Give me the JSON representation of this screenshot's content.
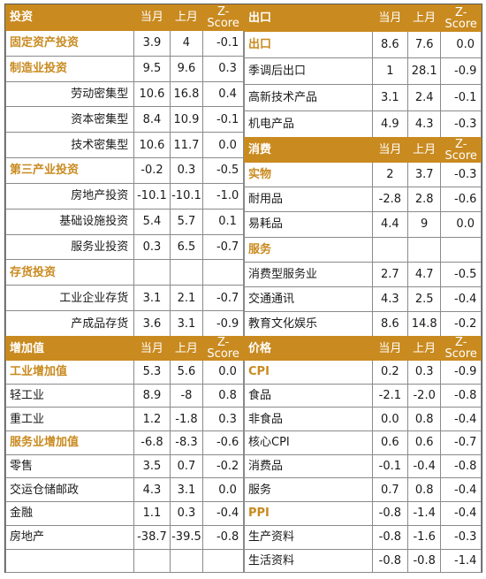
{
  "columns": {
    "current": "当月",
    "previous": "上月",
    "zscore": "Z-Score"
  },
  "investment": {
    "title": "投资",
    "rows": [
      {
        "name": "固定资产投资",
        "cur": "3.9",
        "prev": "4",
        "z": "-0.1",
        "type": "cat"
      },
      {
        "name": "制造业投资",
        "cur": "9.5",
        "prev": "9.6",
        "z": "0.3",
        "type": "cat"
      },
      {
        "name": "劳动密集型",
        "cur": "10.6",
        "prev": "16.8",
        "z": "0.4",
        "type": "ind"
      },
      {
        "name": "资本密集型",
        "cur": "8.4",
        "prev": "10.9",
        "z": "-0.1",
        "type": "ind"
      },
      {
        "name": "技术密集型",
        "cur": "10.6",
        "prev": "11.7",
        "z": "0.0",
        "type": "ind"
      },
      {
        "name": "第三产业投资",
        "cur": "-0.2",
        "prev": "0.3",
        "z": "-0.5",
        "type": "cat"
      },
      {
        "name": "房地产投资",
        "cur": "-10.1",
        "prev": "-10.1",
        "z": "-1.0",
        "type": "ind"
      },
      {
        "name": "基础设施投资",
        "cur": "5.4",
        "prev": "5.7",
        "z": "0.1",
        "type": "ind"
      },
      {
        "name": "服务业投资",
        "cur": "0.3",
        "prev": "6.5",
        "z": "-0.7",
        "type": "ind"
      },
      {
        "name": "存货投资",
        "cur": "",
        "prev": "",
        "z": "",
        "type": "cat"
      },
      {
        "name": "工业企业存货",
        "cur": "3.1",
        "prev": "2.1",
        "z": "-0.7",
        "type": "ind"
      },
      {
        "name": "产成品存货",
        "cur": "3.6",
        "prev": "3.1",
        "z": "-0.9",
        "type": "ind"
      }
    ]
  },
  "exports": {
    "title": "出口",
    "rows": [
      {
        "name": "出口",
        "cur": "8.6",
        "prev": "7.6",
        "z": "0.0",
        "type": "cat"
      },
      {
        "name": "季调后出口",
        "cur": "1",
        "prev": "28.1",
        "z": "-0.9",
        "type": "plain"
      },
      {
        "name": "高新技术产品",
        "cur": "3.1",
        "prev": "2.4",
        "z": "-0.1",
        "type": "plain"
      },
      {
        "name": "机电产品",
        "cur": "4.9",
        "prev": "4.3",
        "z": "-0.3",
        "type": "plain"
      }
    ]
  },
  "consumption": {
    "title": "消费",
    "rows": [
      {
        "name": "实物",
        "cur": "2",
        "prev": "3.7",
        "z": "-0.3",
        "type": "cat"
      },
      {
        "name": "耐用品",
        "cur": "-2.8",
        "prev": "2.8",
        "z": "-0.6",
        "type": "plain"
      },
      {
        "name": "易耗品",
        "cur": "4.4",
        "prev": "9",
        "z": "0.0",
        "type": "plain"
      },
      {
        "name": "服务",
        "cur": "",
        "prev": "",
        "z": "",
        "type": "cat"
      },
      {
        "name": "消费型服务业",
        "cur": "2.7",
        "prev": "4.7",
        "z": "-0.5",
        "type": "plain"
      },
      {
        "name": "交通通讯",
        "cur": "4.3",
        "prev": "2.5",
        "z": "-0.4",
        "type": "plain"
      },
      {
        "name": "教育文化娱乐",
        "cur": "8.6",
        "prev": "14.8",
        "z": "-0.2",
        "type": "plain"
      }
    ]
  },
  "value_added": {
    "title": "增加值",
    "rows": [
      {
        "name": "工业增加值",
        "cur": "5.3",
        "prev": "5.6",
        "z": "0.0",
        "type": "cat"
      },
      {
        "name": "轻工业",
        "cur": "8.9",
        "prev": "-8",
        "z": "0.8",
        "type": "plain"
      },
      {
        "name": "重工业",
        "cur": "1.2",
        "prev": "-1.8",
        "z": "0.3",
        "type": "plain"
      },
      {
        "name": "服务业增加值",
        "cur": "-6.8",
        "prev": "-8.3",
        "z": "-0.6",
        "type": "cat"
      },
      {
        "name": "零售",
        "cur": "3.5",
        "prev": "0.7",
        "z": "-0.2",
        "type": "plain"
      },
      {
        "name": "交运仓储邮政",
        "cur": "4.3",
        "prev": "3.1",
        "z": "0.0",
        "type": "plain"
      },
      {
        "name": "金融",
        "cur": "1.1",
        "prev": "0.3",
        "z": "-0.4",
        "type": "plain"
      },
      {
        "name": "房地产",
        "cur": "-38.7",
        "prev": "-39.5",
        "z": "-0.8",
        "type": "plain"
      },
      {
        "name": "",
        "cur": "",
        "prev": "",
        "z": "",
        "type": "plain"
      }
    ]
  },
  "prices": {
    "title": "价格",
    "rows": [
      {
        "name": "CPI",
        "cur": "0.2",
        "prev": "0.3",
        "z": "-0.9",
        "type": "cat"
      },
      {
        "name": "食品",
        "cur": "-2.1",
        "prev": "-2.0",
        "z": "-0.8",
        "type": "plain"
      },
      {
        "name": "非食品",
        "cur": "0.0",
        "prev": "0.8",
        "z": "-0.4",
        "type": "plain"
      },
      {
        "name": "核心CPI",
        "cur": "0.6",
        "prev": "0.6",
        "z": "-0.7",
        "type": "plain"
      },
      {
        "name": "消费品",
        "cur": "-0.1",
        "prev": "-0.4",
        "z": "-0.8",
        "type": "plain"
      },
      {
        "name": "服务",
        "cur": "0.7",
        "prev": "0.8",
        "z": "-0.4",
        "type": "plain"
      },
      {
        "name": "PPI",
        "cur": "-0.8",
        "prev": "-1.4",
        "z": "-0.4",
        "type": "cat"
      },
      {
        "name": "生产资料",
        "cur": "-0.8",
        "prev": "-1.6",
        "z": "-0.3",
        "type": "plain"
      },
      {
        "name": "生活资料",
        "cur": "-0.8",
        "prev": "-0.8",
        "z": "-1.4",
        "type": "plain"
      }
    ]
  }
}
